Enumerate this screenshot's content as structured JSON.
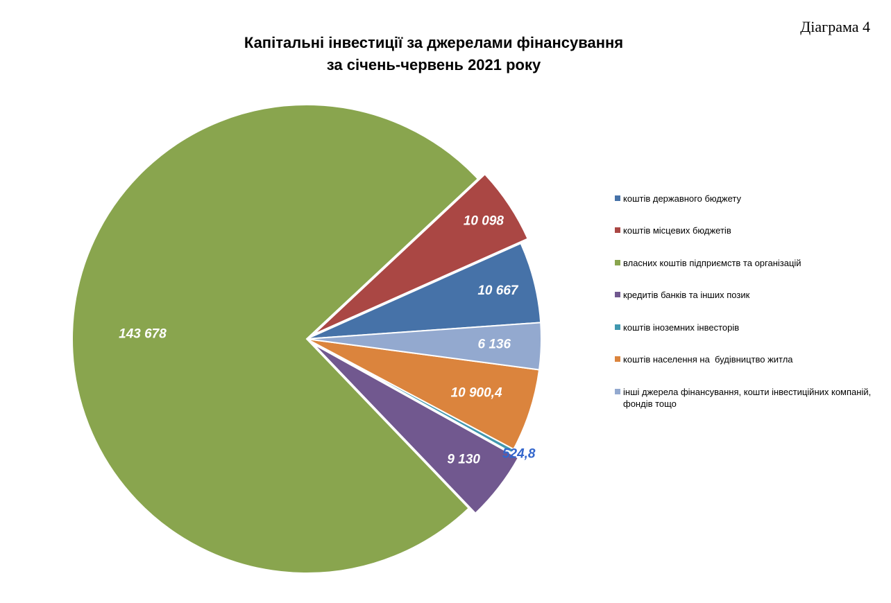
{
  "page": {
    "diagram_number": "Діаграма 4"
  },
  "chart_data": {
    "type": "pie",
    "title": [
      "Капітальні інвестиції за джерелами фінансування",
      "за січень-червень 2021 року"
    ],
    "slices": [
      {
        "name": "коштів державного бюджету",
        "value": 10667,
        "label": "10 667",
        "color": "#4672A8",
        "label_color": "#ffffff"
      },
      {
        "name": "коштів місцевих бюджетів",
        "value": 10098,
        "label": "10 098",
        "color": "#AA4744",
        "label_color": "#ffffff",
        "exploded": true
      },
      {
        "name": "власних коштів підприємств та організацій",
        "value": 143678,
        "label": "143 678",
        "color": "#89A54E",
        "label_color": "#ffffff"
      },
      {
        "name": "кредитів банків та інших позик",
        "value": 9130,
        "label": "9 130",
        "color": "#71588F",
        "label_color": "#ffffff",
        "exploded": true
      },
      {
        "name": "коштів іноземних інвесторів",
        "value": 524.8,
        "label": "524,8",
        "color": "#4198AF",
        "label_color": "#3366CC"
      },
      {
        "name": "коштів населення на  будівництво житла",
        "value": 10900.4,
        "label": "10 900,4",
        "color": "#DB843D",
        "label_color": "#ffffff"
      },
      {
        "name": "інші джерела фінансування, кошти інвестиційних компаній, фондів тощо",
        "value": 6136,
        "label": "6 136",
        "color": "#93A9CF",
        "label_color": "#ffffff"
      }
    ],
    "legend_position": "right"
  }
}
